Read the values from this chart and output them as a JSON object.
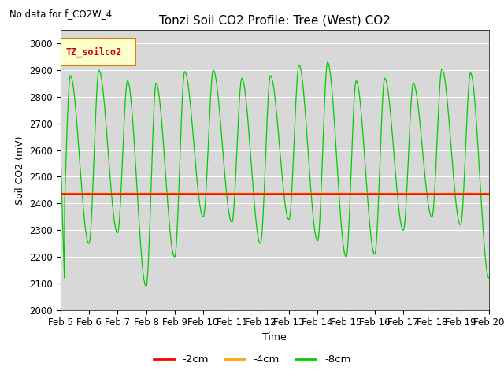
{
  "title": "Tonzi Soil CO2 Profile: Tree (West) CO2",
  "no_data_text": "No data for f_CO2W_4",
  "xlabel": "Time",
  "ylabel": "Soil CO2 (mV)",
  "ylim": [
    2000,
    3050
  ],
  "xlim": [
    0,
    15
  ],
  "xtick_labels": [
    "Feb 5",
    "Feb 6",
    "Feb 7",
    "Feb 8",
    "Feb 9",
    "Feb 10",
    "Feb 11",
    "Feb 12",
    "Feb 13",
    "Feb 14",
    "Feb 15",
    "Feb 16",
    "Feb 17",
    "Feb 18",
    "Feb 19",
    "Feb 20"
  ],
  "flat_value_2cm": 2435,
  "flat_value_4cm": 2437,
  "line_colors": [
    "#ff0000",
    "#ffa500",
    "#00cc00"
  ],
  "line_labels": [
    "-2cm",
    "-4cm",
    "-8cm"
  ],
  "legend_label": "TZ_soilco2",
  "legend_bg": "#ffffcc",
  "legend_border": "#cc8800",
  "bg_color": "#d8d8d8",
  "title_fontsize": 11,
  "axis_fontsize": 9,
  "tick_fontsize": 8.5
}
